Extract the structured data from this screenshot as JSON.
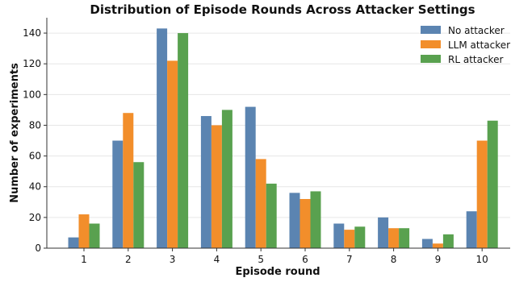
{
  "chart_data": {
    "type": "bar",
    "title": "Distribution of Episode Rounds Across Attacker Settings",
    "xlabel": "Episode round",
    "ylabel": "Number of experiments",
    "categories": [
      "1",
      "2",
      "3",
      "4",
      "5",
      "6",
      "7",
      "8",
      "9",
      "10"
    ],
    "ylim": [
      0,
      150
    ],
    "yticks": [
      0,
      20,
      40,
      60,
      80,
      100,
      120,
      140
    ],
    "grid": "horizontal",
    "legend_position": "top-right",
    "series": [
      {
        "name": "No attacker",
        "color": "#5b84b1",
        "values": [
          7,
          70,
          143,
          86,
          92,
          36,
          16,
          20,
          6,
          24
        ]
      },
      {
        "name": "LLM attacker",
        "color": "#f28e2b",
        "values": [
          22,
          88,
          122,
          80,
          58,
          32,
          12,
          13,
          3,
          70
        ]
      },
      {
        "name": "RL attacker",
        "color": "#59a14f",
        "values": [
          16,
          56,
          140,
          90,
          42,
          37,
          14,
          13,
          9,
          83
        ]
      }
    ]
  }
}
